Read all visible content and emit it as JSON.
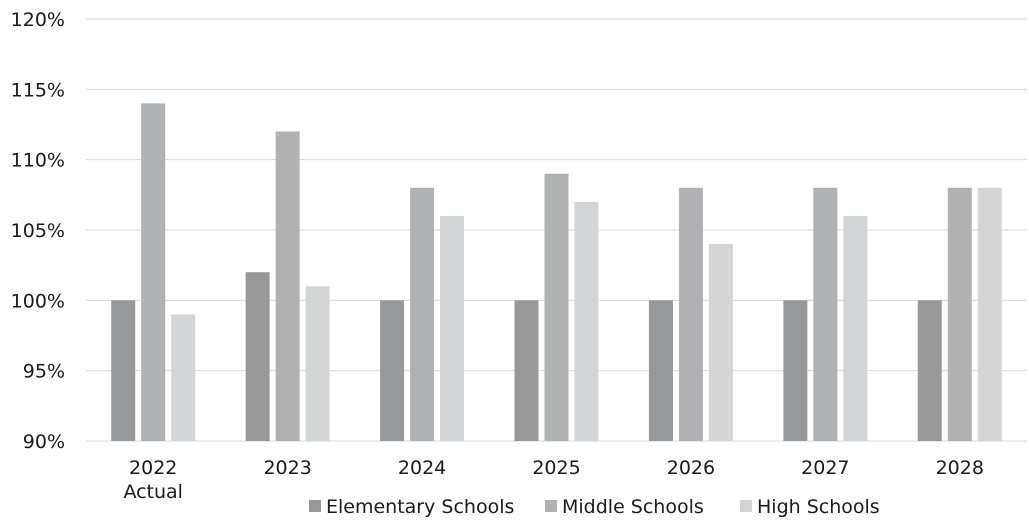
{
  "chart_data": {
    "type": "bar",
    "categories": [
      [
        "2022",
        "Actual"
      ],
      [
        "2023"
      ],
      [
        "2024"
      ],
      [
        "2025"
      ],
      [
        "2026"
      ],
      [
        "2027"
      ],
      [
        "2028"
      ]
    ],
    "series": [
      {
        "name": "Elementary Schools",
        "color": "#97989a",
        "values": [
          100,
          102,
          100,
          100,
          100,
          100,
          100
        ]
      },
      {
        "name": "Middle Schools",
        "color": "#b0b1b3",
        "values": [
          114,
          112,
          108,
          109,
          108,
          108,
          108
        ]
      },
      {
        "name": "High Schools",
        "color": "#d3d4d6",
        "values": [
          99,
          101,
          106,
          107,
          104,
          106,
          108
        ]
      }
    ],
    "y_ticks": [
      "90%",
      "95%",
      "100%",
      "105%",
      "110%",
      "115%",
      "120%"
    ],
    "ylim": [
      90,
      120
    ],
    "y_unit": "%",
    "grid": true,
    "legend_position": "bottom"
  },
  "colors": {
    "gridline": "#d9d9d9"
  }
}
